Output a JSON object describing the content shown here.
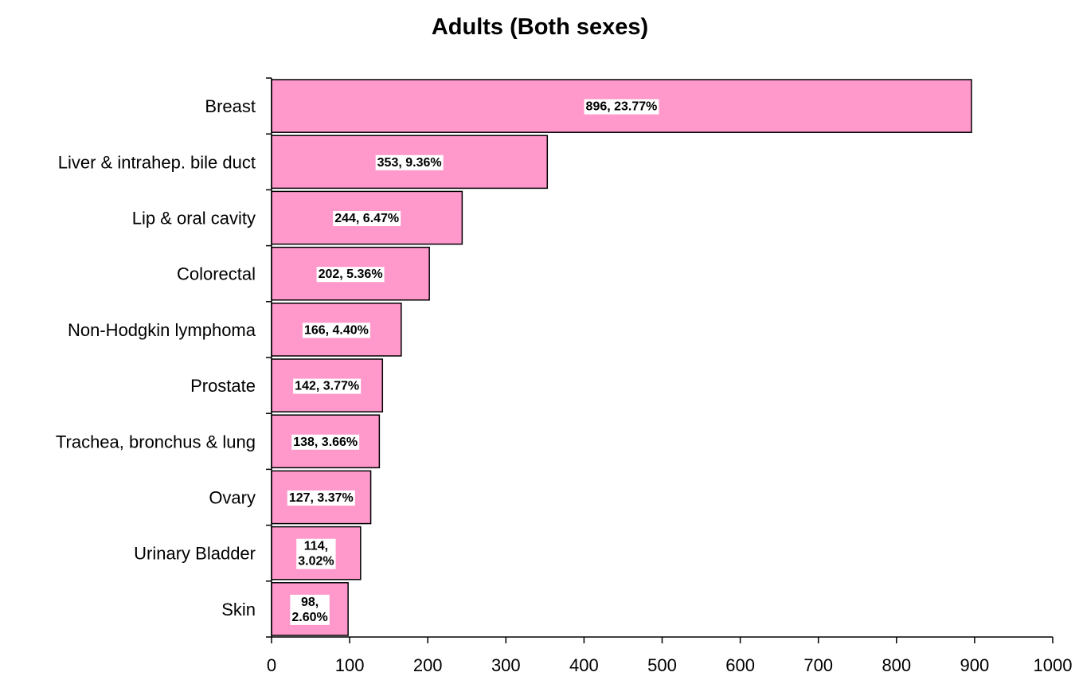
{
  "chart_data": {
    "type": "bar",
    "orientation": "horizontal",
    "title": "Adults (Both sexes)",
    "xlabel": "",
    "ylabel": "",
    "categories": [
      "Breast",
      "Liver & intrahep. bile duct",
      "Lip & oral cavity",
      "Colorectal",
      "Non-Hodgkin lymphoma",
      "Prostate",
      "Trachea, bronchus & lung",
      "Ovary",
      "Urinary Bladder",
      "Skin"
    ],
    "values": [
      896,
      353,
      244,
      202,
      166,
      142,
      138,
      127,
      114,
      98
    ],
    "data_labels": [
      [
        "896, 23.77%"
      ],
      [
        "353, 9.36%"
      ],
      [
        "244, 6.47%"
      ],
      [
        "202, 5.36%"
      ],
      [
        "166, 4.40%"
      ],
      [
        "142, 3.77%"
      ],
      [
        "138, 3.66%"
      ],
      [
        "127, 3.37%"
      ],
      [
        "114,",
        "3.02%"
      ],
      [
        "98,",
        "2.60%"
      ]
    ],
    "xlim": [
      0,
      1000
    ],
    "xticks": [
      0,
      100,
      200,
      300,
      400,
      500,
      600,
      700,
      800,
      900,
      1000
    ],
    "bar_color": "#ff99cc",
    "bar_edge_color": "#000000",
    "grid": false,
    "legend": "none"
  }
}
